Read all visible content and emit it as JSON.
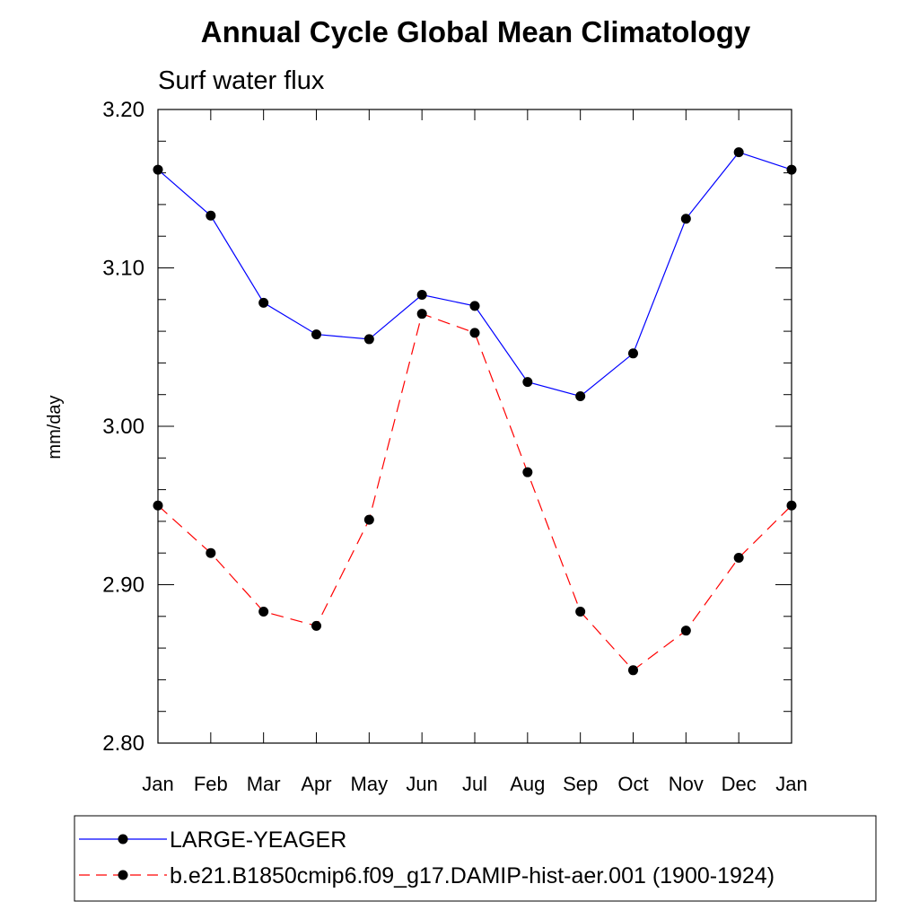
{
  "chart_data": {
    "type": "line",
    "title": "Annual Cycle Global Mean Climatology",
    "subtitle": "Surf water flux",
    "ylabel": "mm/day",
    "xlabel": "",
    "categories": [
      "Jan",
      "Feb",
      "Mar",
      "Apr",
      "May",
      "Jun",
      "Jul",
      "Aug",
      "Sep",
      "Oct",
      "Nov",
      "Dec",
      "Jan"
    ],
    "ylim": [
      2.8,
      3.2
    ],
    "yticks": [
      "3.20",
      "3.10",
      "3.00",
      "2.90",
      "2.80"
    ],
    "series": [
      {
        "name": "LARGE-YEAGER",
        "color": "#0000ff",
        "dash": "solid",
        "marker": "filled-circle",
        "values": [
          3.162,
          3.133,
          3.078,
          3.058,
          3.055,
          3.083,
          3.076,
          3.028,
          3.019,
          3.046,
          3.131,
          3.173,
          3.162
        ]
      },
      {
        "name": "b.e21.B1850cmip6.f09_g17.DAMIP-hist-aer.001 (1900-1924)",
        "color": "#ff0000",
        "dash": "dashed",
        "marker": "filled-circle",
        "values": [
          2.95,
          2.92,
          2.883,
          2.874,
          2.941,
          3.071,
          3.059,
          2.971,
          2.883,
          2.846,
          2.871,
          2.917,
          2.95
        ]
      }
    ],
    "legend_position": "bottom"
  }
}
